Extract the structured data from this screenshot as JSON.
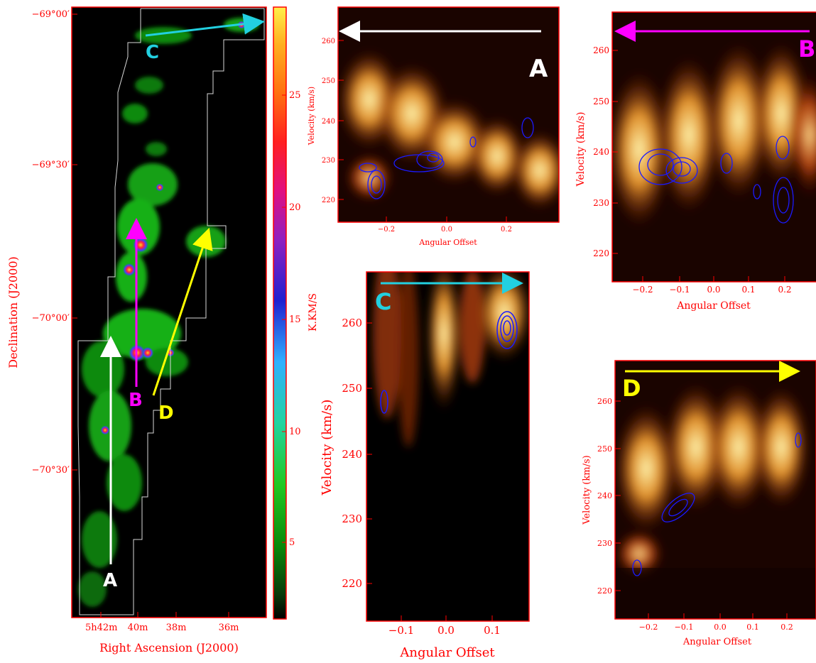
{
  "colors": {
    "axis": "#ff0000",
    "contour": "#1a1aff",
    "arrow_A": "#ffffff",
    "arrow_B": "#ff00ff",
    "arrow_C": "#22d0e0",
    "arrow_D": "#ffff00"
  },
  "map_panel": {
    "xlabel": "Right Ascension (J2000)",
    "ylabel": "Declination (J2000)",
    "x_ticks": [
      "5h42m",
      "40m",
      "38m",
      "36m"
    ],
    "y_ticks": [
      "−69°00′",
      "−69°30′",
      "−70°00′",
      "−70°30′"
    ],
    "colorbar_label": "K.KM/S",
    "colorbar_ticks": [
      "5",
      "10",
      "15",
      "20",
      "25"
    ],
    "path_labels": [
      "A",
      "B",
      "C",
      "D"
    ]
  },
  "pv_panels": {
    "A": {
      "letter": "A",
      "xlabel": "Angular Offset",
      "ylabel": "Velocity (km/s)",
      "x_ticks": [
        "−0.2",
        "0.0",
        "0.2"
      ],
      "y_ticks": [
        "220",
        "230",
        "240",
        "250",
        "260"
      ]
    },
    "B": {
      "letter": "B",
      "xlabel": "Angular Offset",
      "ylabel": "Velocity (km/s)",
      "x_ticks": [
        "−0.2",
        "−0.1",
        "0.0",
        "0.1",
        "0.2"
      ],
      "y_ticks": [
        "220",
        "230",
        "240",
        "250",
        "260"
      ]
    },
    "C": {
      "letter": "C",
      "xlabel": "Angular Offset",
      "ylabel": "Velocity (km/s)",
      "x_ticks": [
        "−0.1",
        "0.0",
        "0.1"
      ],
      "y_ticks": [
        "220",
        "230",
        "240",
        "250",
        "260"
      ]
    },
    "D": {
      "letter": "D",
      "xlabel": "Angular Offset",
      "ylabel": "Velocity (km/s)",
      "x_ticks": [
        "−0.2",
        "−0.1",
        "0.0",
        "0.1",
        "0.2"
      ],
      "y_ticks": [
        "220",
        "230",
        "240",
        "250",
        "260"
      ]
    }
  },
  "chart_data": [
    {
      "type": "heatmap",
      "title": "",
      "xlabel": "Right Ascension (J2000)",
      "ylabel": "Declination (J2000)",
      "colorbar_label": "K.KM/S",
      "colorbar_range": [
        0,
        30
      ],
      "colorbar_ticks": [
        5,
        10,
        15,
        20,
        25
      ],
      "x_ticks": [
        "5h42m",
        "40m",
        "38m",
        "36m"
      ],
      "y_ticks": [
        "−69°00′",
        "−69°30′",
        "−70°00′",
        "−70°30′"
      ],
      "annotations": [
        "A",
        "B",
        "C",
        "D"
      ]
    },
    {
      "type": "heatmap",
      "panel": "A",
      "xlabel": "Angular Offset",
      "ylabel": "Velocity (km/s)",
      "xlim": [
        -0.38,
        0.38
      ],
      "ylim": [
        215,
        267
      ],
      "x_ticks": [
        -0.2,
        0.0,
        0.2
      ],
      "y_ticks": [
        220,
        230,
        240,
        250,
        260
      ]
    },
    {
      "type": "heatmap",
      "panel": "B",
      "xlabel": "Angular Offset",
      "ylabel": "Velocity (km/s)",
      "xlim": [
        -0.29,
        0.29
      ],
      "ylim": [
        214,
        267
      ],
      "x_ticks": [
        -0.2,
        -0.1,
        0.0,
        0.1,
        0.2
      ],
      "y_ticks": [
        220,
        230,
        240,
        250,
        260
      ]
    },
    {
      "type": "heatmap",
      "panel": "C",
      "xlabel": "Angular Offset",
      "ylabel": "Velocity (km/s)",
      "xlim": [
        -0.17,
        0.17
      ],
      "ylim": [
        214,
        267
      ],
      "x_ticks": [
        -0.1,
        0.0,
        0.1
      ],
      "y_ticks": [
        220,
        230,
        240,
        250,
        260
      ]
    },
    {
      "type": "heatmap",
      "panel": "D",
      "xlabel": "Angular Offset",
      "ylabel": "Velocity (km/s)",
      "xlim": [
        -0.29,
        0.29
      ],
      "ylim": [
        214,
        268
      ],
      "x_ticks": [
        -0.2,
        -0.1,
        0.0,
        0.1,
        0.2
      ],
      "y_ticks": [
        220,
        230,
        240,
        250,
        260
      ]
    }
  ]
}
